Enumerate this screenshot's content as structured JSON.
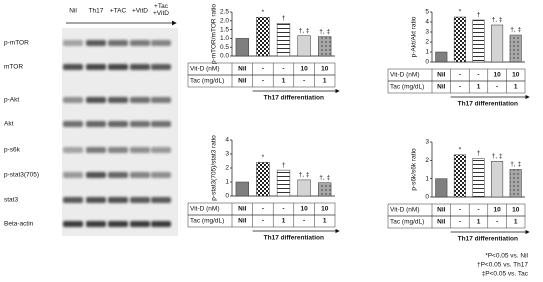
{
  "blot": {
    "lanes": [
      "Nil",
      "Th17",
      "+TAC",
      "+VitD",
      "+Tac +VitD"
    ],
    "rows": [
      "p-mTOR",
      "mTOR",
      "p-Akt",
      "Akt",
      "p-s6k",
      "p-stat3(705)",
      "stat3",
      "Beta-actin"
    ]
  },
  "chart_data": [
    {
      "type": "bar",
      "y_label": "p-mTOR/mTOR ratio",
      "values": [
        1.0,
        2.2,
        1.85,
        1.15,
        1.1
      ],
      "annotations": [
        null,
        "*",
        "†",
        "†, ‡",
        "†, ‡"
      ],
      "patterns": [
        "solid",
        "checker",
        "hlines",
        "solid",
        "dots"
      ],
      "colors": [
        "#7f7f7f",
        "#ffffff",
        "#ffffff",
        "#d4d4d4",
        "#a8a8a8"
      ],
      "ylim": [
        0,
        2.5
      ],
      "yticks": [
        {
          "value": 0,
          "label": "0.0"
        },
        {
          "value": 0.5,
          "label": "0.5"
        },
        {
          "value": 1,
          "label": "1.0"
        },
        {
          "value": 1.5,
          "label": "1.5"
        },
        {
          "value": 2,
          "label": "2.0"
        },
        {
          "value": 2.5,
          "label": "2.5"
        }
      ],
      "table": [
        {
          "label": "Vit-D (nM)",
          "cells": [
            "Nil",
            "-",
            "-",
            "10",
            "10"
          ]
        },
        {
          "label": "Tac (mg/dL)",
          "cells": [
            "Nil",
            "-",
            "1",
            "-",
            "1"
          ]
        }
      ],
      "table_footer": "Th17 differentiation"
    },
    {
      "type": "bar",
      "y_label": "p-Akt/Akt ratio",
      "values": [
        1.0,
        4.5,
        4.2,
        3.7,
        2.7
      ],
      "annotations": [
        null,
        "*",
        "†",
        "†, ‡",
        "†, ‡"
      ],
      "patterns": [
        "solid",
        "checker",
        "hlines",
        "solid",
        "dots"
      ],
      "colors": [
        "#7f7f7f",
        "#ffffff",
        "#ffffff",
        "#d4d4d4",
        "#a8a8a8"
      ],
      "ylim": [
        0,
        5
      ],
      "yticks": [
        0,
        1,
        2,
        3,
        4,
        5
      ],
      "table": [
        {
          "label": "Vit-D (nM)",
          "cells": [
            "Nil",
            "-",
            "-",
            "10",
            "10"
          ]
        },
        {
          "label": "Tac (mg/dL)",
          "cells": [
            "Nil",
            "-",
            "1",
            "-",
            "1"
          ]
        }
      ],
      "table_footer": "Th17 differentiation"
    },
    {
      "type": "bar",
      "y_label": "p-stat3(705)/stat3 ratio",
      "values": [
        1.0,
        2.4,
        1.85,
        1.15,
        0.95
      ],
      "annotations": [
        null,
        "*",
        "†",
        "†, ‡",
        "†, ‡"
      ],
      "patterns": [
        "solid",
        "checker",
        "hlines",
        "solid",
        "dots"
      ],
      "colors": [
        "#7f7f7f",
        "#ffffff",
        "#ffffff",
        "#d4d4d4",
        "#a8a8a8"
      ],
      "ylim": [
        0,
        4
      ],
      "yticks": [
        0,
        1,
        2,
        3,
        4
      ],
      "table": [
        {
          "label": "Vit-D (nM)",
          "cells": [
            "Nil",
            "-",
            "-",
            "10",
            "10"
          ]
        },
        {
          "label": "Tac (mg/dL)",
          "cells": [
            "Nil",
            "-",
            "1",
            "-",
            "1"
          ]
        }
      ],
      "table_footer": "Th17 differentiation"
    },
    {
      "type": "bar",
      "y_label": "p-s6k/s6k ratio",
      "values": [
        1.0,
        2.3,
        2.1,
        1.95,
        1.5
      ],
      "annotations": [
        null,
        "*",
        "†",
        "†, ‡",
        "†, ‡"
      ],
      "patterns": [
        "solid",
        "checker",
        "hlines",
        "solid",
        "dots"
      ],
      "colors": [
        "#7f7f7f",
        "#ffffff",
        "#ffffff",
        "#d4d4d4",
        "#a8a8a8"
      ],
      "ylim": [
        0,
        3
      ],
      "yticks": [
        0,
        1,
        2,
        3
      ],
      "table": [
        {
          "label": "Vit-D (nM)",
          "cells": [
            "Nil",
            "-",
            "-",
            "10",
            "10"
          ]
        },
        {
          "label": "Tac (mg/dL)",
          "cells": [
            "Nil",
            "-",
            "1",
            "-",
            "1"
          ]
        }
      ],
      "table_footer": "Th17 differentiation"
    }
  ],
  "footnotes": [
    "*P<0.05 vs. Nil",
    "†P<0.05 vs. Th17",
    "‡P<0.05 vs. Tac"
  ]
}
